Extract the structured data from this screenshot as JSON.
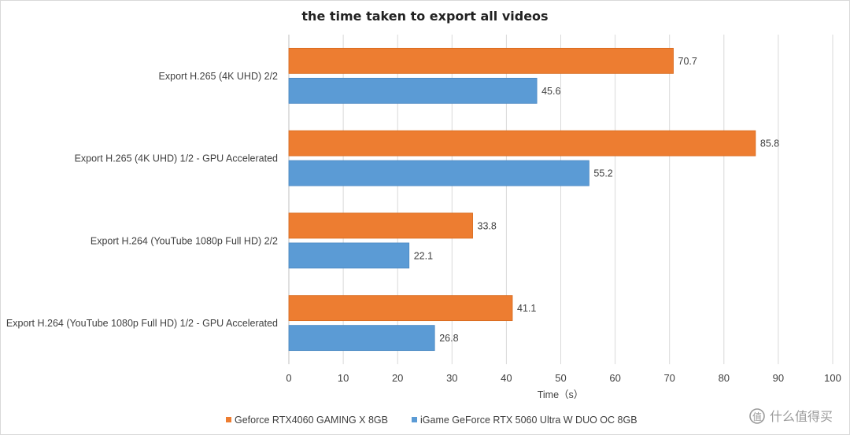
{
  "chart_data": {
    "type": "bar",
    "orientation": "horizontal",
    "title": "the time taken to export all  videos",
    "xlabel": "Time（s）",
    "ylabel": "",
    "xlim": [
      0,
      100
    ],
    "xticks": [
      0,
      10,
      20,
      30,
      40,
      50,
      60,
      70,
      80,
      90,
      100
    ],
    "grid": true,
    "legend_position": "bottom",
    "categories": [
      "Export H.265 (4K UHD) 2/2",
      "Export H.265 (4K UHD) 1/2 - GPU Accelerated",
      "Export H.264 (YouTube 1080p Full HD) 2/2",
      "Export H.264 (YouTube 1080p Full HD) 1/2 - GPU Accelerated"
    ],
    "series": [
      {
        "name": "Geforce RTX4060 GAMING X 8GB",
        "color": "#ED7D31",
        "values": [
          70.7,
          85.8,
          33.8,
          41.1
        ]
      },
      {
        "name": "iGame GeForce RTX 5060 Ultra W DUO OC 8GB",
        "color": "#5B9BD5",
        "values": [
          45.6,
          55.2,
          22.1,
          26.8
        ]
      }
    ]
  },
  "watermark": {
    "text": "什么值得买",
    "icon": "zhi-logo-icon"
  }
}
